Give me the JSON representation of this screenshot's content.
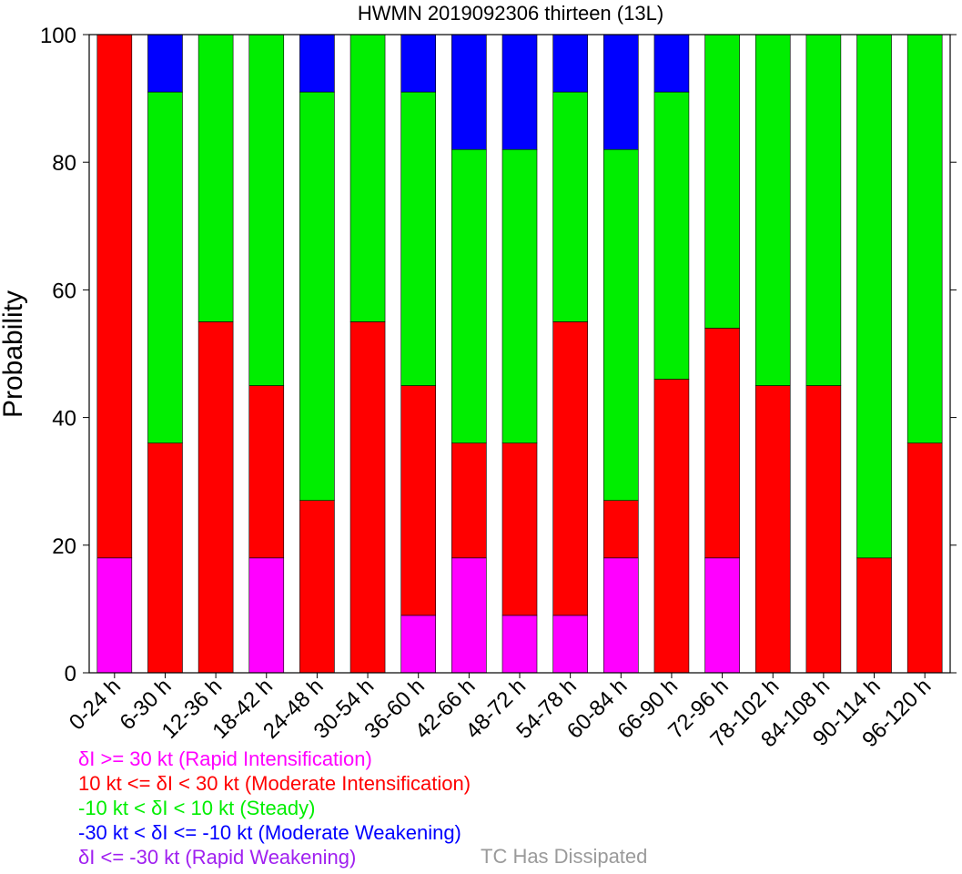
{
  "colors": {
    "rapid_intensification": "#ff00ff",
    "moderate_intensification": "#ff0000",
    "steady": "#00ee00",
    "moderate_weakening": "#0000ff",
    "rapid_weakening": "#a020f0",
    "dissipated": "#9a9a9a"
  },
  "chart_data": {
    "type": "bar",
    "stacked": true,
    "title": "HWMN 2019092306 thirteen (13L)",
    "xlabel": "",
    "ylabel": "Probability",
    "ylim": [
      0,
      100
    ],
    "yticks": [
      0,
      20,
      40,
      60,
      80,
      100
    ],
    "grid": false,
    "categories": [
      "0-24 h",
      "6-30 h",
      "12-36 h",
      "18-42 h",
      "24-48 h",
      "30-54 h",
      "36-60 h",
      "42-66 h",
      "48-72 h",
      "54-78 h",
      "60-84 h",
      "66-90 h",
      "72-96 h",
      "78-102 h",
      "84-108 h",
      "90-114 h",
      "96-120 h"
    ],
    "series": [
      {
        "name": "δI >= 30 kt (Rapid Intensification)",
        "color": "#ff00ff",
        "values": [
          18,
          0,
          0,
          18,
          0,
          0,
          9,
          18,
          9,
          9,
          18,
          0,
          18,
          0,
          0,
          0,
          0
        ]
      },
      {
        "name": "10 kt <= δI < 30 kt (Moderate Intensification)",
        "color": "#ff0000",
        "values": [
          82,
          36,
          55,
          27,
          27,
          55,
          36,
          18,
          27,
          46,
          9,
          46,
          36,
          45,
          45,
          18,
          36
        ]
      },
      {
        "name": "-10 kt < δI < 10 kt (Steady)",
        "color": "#00ee00",
        "values": [
          0,
          55,
          45,
          55,
          64,
          45,
          46,
          46,
          46,
          36,
          55,
          45,
          46,
          55,
          55,
          82,
          64
        ]
      },
      {
        "name": "-30 kt < δI <= -10 kt (Moderate Weakening)",
        "color": "#0000ff",
        "values": [
          0,
          9,
          0,
          0,
          9,
          0,
          9,
          18,
          18,
          9,
          18,
          9,
          0,
          0,
          0,
          0,
          0
        ]
      },
      {
        "name": "δI <= -30 kt (Rapid Weakening)",
        "color": "#a020f0",
        "values": [
          0,
          0,
          0,
          0,
          0,
          0,
          0,
          0,
          0,
          0,
          0,
          0,
          0,
          0,
          0,
          0,
          0
        ]
      }
    ]
  },
  "legend": {
    "rapid_intensification": "δI >= 30 kt (Rapid Intensification)",
    "moderate_intensification": "10 kt <= δI < 30 kt (Moderate Intensification)",
    "steady": "-10 kt < δI < 10 kt (Steady)",
    "moderate_weakening": "-30 kt < δI <= -10 kt (Moderate Weakening)",
    "rapid_weakening": "δI <= -30 kt (Rapid Weakening)",
    "dissipated": "TC Has Dissipated"
  }
}
